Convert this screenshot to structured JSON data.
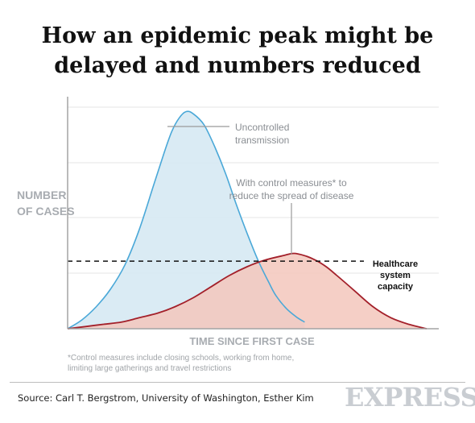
{
  "title_lines": [
    "How an epidemic peak might be",
    "delayed and numbers reduced"
  ],
  "chart_data": {
    "type": "area",
    "title": "How an epidemic peak might be delayed and numbers reduced",
    "xlabel": "TIME SINCE FIRST CASE",
    "ylabel_lines": [
      "NUMBER",
      "OF CASES"
    ],
    "ylim": [
      0,
      100
    ],
    "xlim": [
      0,
      100
    ],
    "grid": true,
    "series": [
      {
        "name": "Uncontrolled transmission",
        "color": "#4aa8d8",
        "fill": "#d6e9f3",
        "x": [
          0,
          4,
          8,
          12,
          16,
          20,
          24,
          27,
          29,
          31,
          33,
          35,
          38,
          41,
          44,
          47,
          50,
          53,
          56,
          58,
          61,
          64,
          66
        ],
        "y": [
          0,
          4,
          10,
          18,
          29,
          45,
          65,
          80,
          89,
          95,
          98,
          97,
          92,
          82,
          70,
          56,
          43,
          31,
          21,
          15,
          9,
          5,
          3
        ]
      },
      {
        "name": "With control measures* to reduce the spread of disease",
        "color": "#a3202a",
        "fill": "#f3c7bc",
        "x": [
          0,
          5,
          10,
          15,
          20,
          25,
          30,
          35,
          40,
          45,
          50,
          55,
          60,
          63,
          66,
          69,
          72,
          75,
          80,
          85,
          90,
          95,
          100
        ],
        "y": [
          0,
          1,
          2,
          3,
          5,
          7,
          10,
          14,
          19,
          24,
          28,
          31,
          33,
          34,
          33,
          31,
          28,
          24,
          17,
          10,
          5,
          2,
          0
        ]
      }
    ],
    "reference_line": {
      "label_lines": [
        "Healthcare",
        "system",
        "capacity"
      ],
      "y": 30.5
    },
    "annotations": [
      {
        "text_lines": [
          "Uncontrolled",
          "transmission"
        ]
      },
      {
        "text_lines": [
          "With control measures* to",
          "reduce the spread of disease"
        ]
      }
    ],
    "footnote_lines": [
      "*Control measures include closing schools, working from home,",
      "limiting large gatherings and travel restrictions"
    ]
  },
  "source": "Source: Carl T. Bergstrom, University of Washington, Esther Kim",
  "logo": "EXPRESS"
}
